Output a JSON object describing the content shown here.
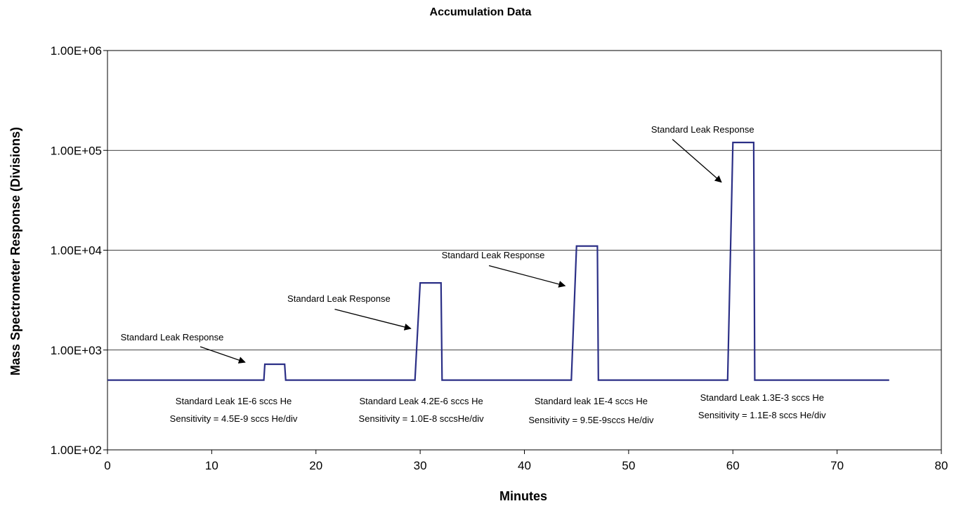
{
  "chart_data": {
    "type": "line",
    "title": "Accumulation Data",
    "xlabel": "Minutes",
    "ylabel": "Mass Spectrometer Response (Divisions)",
    "xlim": [
      0,
      80
    ],
    "ylim": [
      100,
      1000000
    ],
    "yscale": "log",
    "grid": "horizontal",
    "x_ticks": [
      0,
      10,
      20,
      30,
      40,
      50,
      60,
      70,
      80
    ],
    "x_tick_labels": [
      "0",
      "10",
      "20",
      "30",
      "40",
      "50",
      "60",
      "70",
      "80"
    ],
    "y_ticks": [
      100,
      1000,
      10000,
      100000,
      1000000
    ],
    "y_tick_labels": [
      "1.00E+02",
      "1.00E+03",
      "1.00E+04",
      "1.00E+05",
      "1.00E+06"
    ],
    "line_color": "#2b2f86",
    "series": [
      {
        "x": [
          0,
          15,
          15.1,
          17,
          17.1,
          29.5,
          30,
          32,
          32.1,
          44.5,
          45,
          47,
          47.1,
          59.5,
          60,
          62,
          62.1,
          75
        ],
        "y": [
          500,
          500,
          720,
          720,
          500,
          500,
          4700,
          4700,
          500,
          500,
          11000,
          11000,
          500,
          500,
          120000,
          120000,
          500,
          500
        ]
      }
    ],
    "annotations": [
      {
        "text": "Standard Leak Response",
        "x": 6.2,
        "y": 1250,
        "arrow_from": [
          8.9,
          1080
        ],
        "arrow_to": [
          13.2,
          755
        ]
      },
      {
        "text": "Standard Leak Response",
        "x": 22.2,
        "y": 3050,
        "arrow_from": [
          21.8,
          2560
        ],
        "arrow_to": [
          29.1,
          1640
        ]
      },
      {
        "text": "Standard Leak Response",
        "x": 37,
        "y": 8300,
        "arrow_from": [
          36.6,
          7000
        ],
        "arrow_to": [
          43.9,
          4400
        ]
      },
      {
        "text": "Standard Leak Response",
        "x": 57.1,
        "y": 150000,
        "arrow_from": [
          54.2,
          129000
        ],
        "arrow_to": [
          58.9,
          48000
        ]
      }
    ],
    "notes": [
      {
        "line1": "Standard Leak 1E-6 sccs He",
        "line2": "Sensitivity = 4.5E-9 sccs He/div",
        "x": 12.1
      },
      {
        "line1": "Standard Leak 4.2E-6 sccs He",
        "line2": "Sensitivity = 1.0E-8 sccsHe/div",
        "x": 30.1
      },
      {
        "line1": "Standard leak 1E-4 sccs He",
        "line2": "Sensitivity =  9.5E-9sccs He/div",
        "x": 46.4
      },
      {
        "line1": "Standard Leak 1.3E-3 sccs He",
        "line2": "Sensitivity = 1.1E-8 sccs He/div",
        "x": 62.8
      }
    ]
  }
}
